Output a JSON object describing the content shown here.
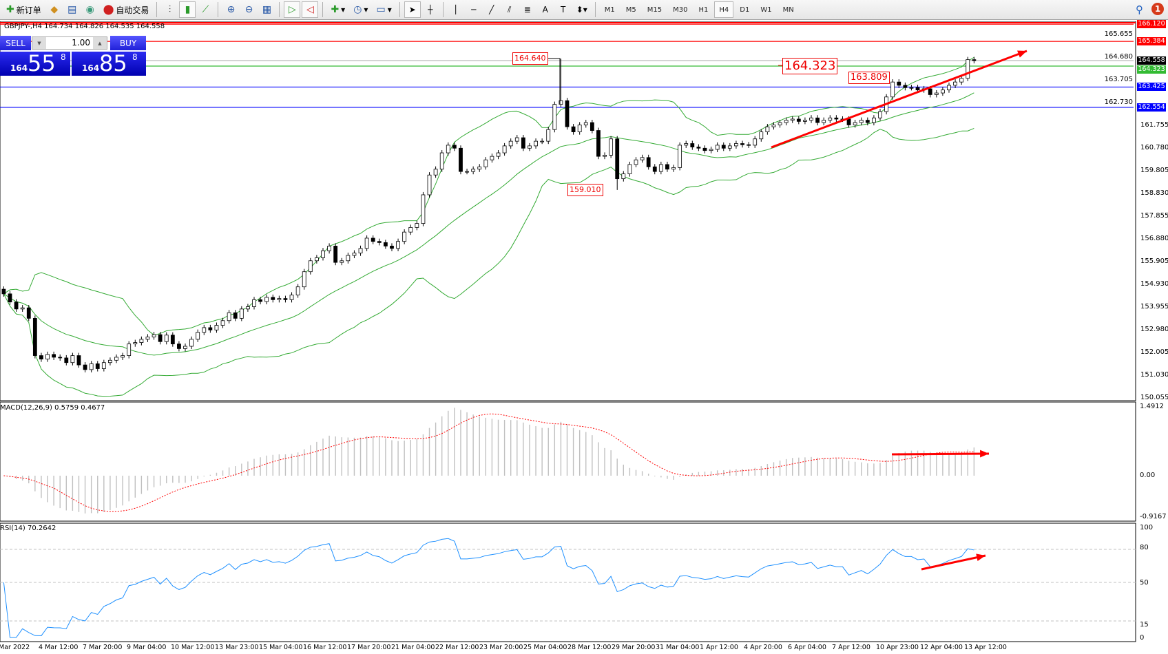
{
  "toolbar": {
    "new_order": "新订单",
    "auto_trading": "自动交易",
    "timeframes": [
      "M1",
      "M5",
      "M15",
      "M30",
      "H1",
      "H4",
      "D1",
      "W1",
      "MN"
    ],
    "active_timeframe": "H4",
    "notifications": "1"
  },
  "chart_header": "GBPJPY-,H4  164.734 164.826 164.535 164.558",
  "trade_panel": {
    "sell": "SELL",
    "buy": "BUY",
    "lot": "1.00",
    "bid_prefix": "164",
    "bid_big": "55",
    "bid_pip": "8",
    "ask_prefix": "164",
    "ask_big": "85",
    "ask_pip": "8"
  },
  "price_axis": [
    "165.655",
    "164.680",
    "163.705",
    "162.730",
    "161.755",
    "160.780",
    "159.805",
    "158.830",
    "157.855",
    "156.880",
    "155.905",
    "154.930",
    "153.955",
    "152.980",
    "152.005",
    "151.030",
    "150.055"
  ],
  "price_lines": [
    {
      "value": "166.120",
      "color": "#ff0000"
    },
    {
      "value": "165.384",
      "color": "#ff0000"
    },
    {
      "value": "164.558",
      "color": "#000000"
    },
    {
      "value": "164.323",
      "color": "#33bb33"
    },
    {
      "value": "163.425",
      "color": "#0000ff"
    },
    {
      "value": "162.554",
      "color": "#0000ff"
    }
  ],
  "annotations": {
    "high": "164.640",
    "low": "159.010",
    "level": "164.323",
    "recent": "163.809"
  },
  "macd": {
    "label": "MACD(12,26,9) 0.5759 0.4677",
    "axis": [
      "1.4912",
      "0.00",
      "-0.9167"
    ]
  },
  "rsi": {
    "label": "RSI(14) 70.2642",
    "axis": [
      "100",
      "80",
      "50",
      "15",
      "0"
    ]
  },
  "time_axis": [
    "Mar 2022",
    "4 Mar 12:00",
    "7 Mar 20:00",
    "9 Mar 04:00",
    "10 Mar 12:00",
    "13 Mar 23:00",
    "15 Mar 04:00",
    "16 Mar 12:00",
    "17 Mar 20:00",
    "21 Mar 04:00",
    "22 Mar 12:00",
    "23 Mar 20:00",
    "25 Mar 04:00",
    "28 Mar 12:00",
    "29 Mar 20:00",
    "31 Mar 04:00",
    "1 Apr 12:00",
    "4 Apr 20:00",
    "6 Apr 04:00",
    "7 Apr 12:00",
    "10 Apr 23:00",
    "12 Apr 04:00",
    "13 Apr 12:00"
  ],
  "chart_data": {
    "type": "candlestick",
    "symbol": "GBPJPY-",
    "timeframe": "H4",
    "ylim": [
      150.055,
      166.3
    ],
    "indicators": [
      "Bollinger Bands",
      "MACD(12,26,9)",
      "RSI(14)"
    ],
    "colors": {
      "bands": "#33aa33",
      "macd_signal": "#ff0000",
      "rsi": "#1e90ff",
      "trend": "#ff0000"
    },
    "close": [
      154.55,
      154.2,
      153.9,
      153.95,
      153.5,
      151.9,
      151.75,
      151.95,
      151.83,
      151.8,
      151.6,
      151.9,
      151.5,
      151.3,
      151.55,
      151.34,
      151.6,
      151.7,
      151.83,
      151.9,
      152.4,
      152.46,
      152.6,
      152.7,
      152.8,
      152.5,
      152.78,
      152.4,
      152.2,
      152.3,
      152.6,
      152.9,
      153.1,
      153.0,
      153.2,
      153.4,
      153.74,
      153.5,
      153.9,
      154.0,
      154.3,
      154.22,
      154.4,
      154.3,
      154.35,
      154.3,
      154.5,
      154.85,
      155.5,
      155.97,
      156.1,
      156.4,
      156.6,
      155.9,
      155.97,
      156.2,
      156.3,
      156.5,
      156.94,
      156.8,
      156.75,
      156.6,
      156.5,
      156.8,
      157.2,
      157.4,
      157.57,
      158.8,
      159.65,
      159.9,
      160.6,
      160.93,
      160.8,
      159.8,
      159.8,
      159.9,
      160.0,
      160.3,
      160.45,
      160.6,
      160.9,
      161.1,
      161.25,
      160.8,
      160.9,
      161.1,
      161.1,
      161.6,
      162.68,
      162.84,
      161.72,
      161.5,
      161.8,
      161.9,
      161.56,
      160.45,
      160.5,
      161.2,
      159.49,
      159.7,
      160.1,
      160.3,
      160.4,
      160.0,
      159.8,
      160.1,
      159.9,
      159.97,
      160.93,
      161.0,
      160.85,
      160.8,
      160.7,
      160.75,
      160.93,
      160.8,
      160.9,
      161.0,
      160.95,
      160.93,
      161.2,
      161.5,
      161.72,
      161.8,
      161.9,
      162.0,
      162.05,
      161.95,
      162.0,
      162.1,
      161.9,
      162.0,
      162.1,
      162.05,
      162.05,
      161.8,
      161.9,
      162.0,
      161.9,
      162.1,
      162.37,
      163.0,
      163.64,
      163.5,
      163.4,
      163.4,
      163.3,
      163.35,
      163.1,
      163.17,
      163.3,
      163.5,
      163.64,
      163.8,
      164.6,
      164.558
    ]
  }
}
